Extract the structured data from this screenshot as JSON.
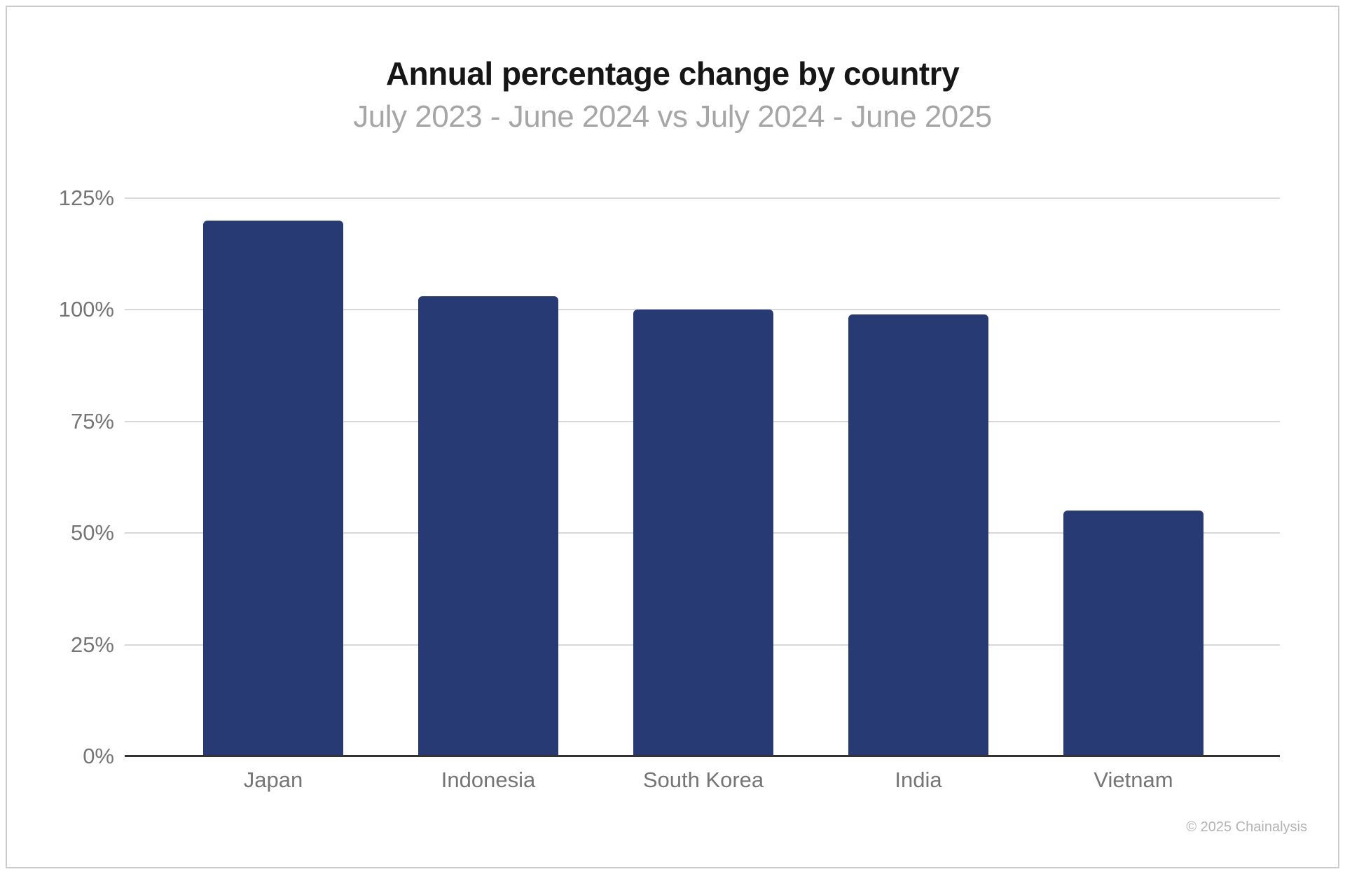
{
  "page": {
    "footer": "© 2025 Chainalysis"
  },
  "chart_data": {
    "type": "bar",
    "title": "Annual percentage change by country",
    "subtitle": "July 2023 - June 2024 vs July 2024 - June 2025",
    "categories": [
      "Japan",
      "Indonesia",
      "South Korea",
      "India",
      "Vietnam"
    ],
    "values": [
      120,
      103,
      100,
      99,
      55
    ],
    "value_unit": "%",
    "xlabel": "",
    "ylabel": "",
    "ylim": [
      0,
      125
    ],
    "yticks": [
      0,
      25,
      50,
      75,
      100,
      125
    ],
    "ytick_labels": [
      "0%",
      "25%",
      "50%",
      "75%",
      "100%",
      "125%"
    ],
    "grid": "horizontal",
    "legend": "none",
    "colors": {
      "bar": "#283a73",
      "gridline": "#d8d8d8",
      "axis_line": "#333333",
      "tick_label": "#757575",
      "title": "#161616",
      "subtitle": "#a6a6a6",
      "footer": "#b3b3b3"
    }
  }
}
